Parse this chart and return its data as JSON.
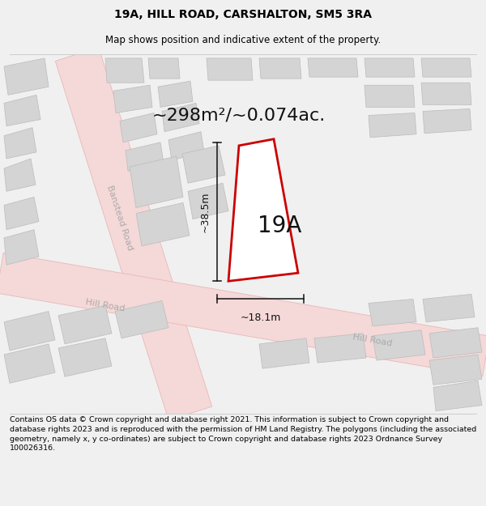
{
  "title": "19A, HILL ROAD, CARSHALTON, SM5 3RA",
  "subtitle": "Map shows position and indicative extent of the property.",
  "footer": "Contains OS data © Crown copyright and database right 2021. This information is subject to Crown copyright and database rights 2023 and is reproduced with the permission of HM Land Registry. The polygons (including the associated geometry, namely x, y co-ordinates) are subject to Crown copyright and database rights 2023 Ordnance Survey 100026316.",
  "area_label": "~298m²/~0.074ac.",
  "width_label": "~18.1m",
  "height_label": "~38.5m",
  "property_label": "19A",
  "bg_color": "#f0f0f0",
  "map_bg": "#ffffff",
  "road_fill": "#f5d8d8",
  "road_edge": "#e8b8b8",
  "building_fill": "#d4d4d4",
  "building_edge": "#bbbbbb",
  "property_fill": "#ffffff",
  "property_edge": "#cc0000",
  "dim_color": "#111111",
  "road_label_color": "#aaaaaa",
  "title_fontsize": 10,
  "subtitle_fontsize": 8.5,
  "footer_fontsize": 6.8,
  "area_fontsize": 16,
  "dim_fontsize": 9,
  "label_fontsize": 20,
  "road_label_fontsize": 8
}
